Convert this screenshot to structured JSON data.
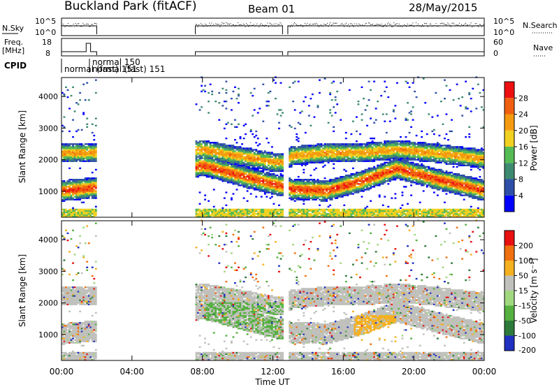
{
  "header": {
    "site": "Buckland Park (fitACF)",
    "beam": "Beam 01",
    "date": "28/May/2015"
  },
  "aux": {
    "nsky_label": "N.Sky",
    "nsearch_label": "N.Search",
    "nsky_ticks": [
      "10^5",
      "10^0"
    ],
    "freq_label_top": "Freq.",
    "freq_label_unit": "[MHz]",
    "freq_ticks": [
      "18",
      "8"
    ],
    "nave_label": "Nave",
    "nave_ticks": [
      "60",
      "0"
    ],
    "cpid_label": "CPID",
    "cpid_entries": [
      "normal 150",
      "normal (fast) 151",
      "normal (fast) 151"
    ]
  },
  "chart_data": [
    {
      "type": "heatmap",
      "panel": "power",
      "ylabel": "Slant Range [km]",
      "yticks": [
        "1000",
        "2000",
        "3000",
        "4000"
      ],
      "ylim": [
        180,
        4600
      ],
      "colorbar_label": "Power [dB]",
      "colorbar_ticks": [
        "4",
        "8",
        "12",
        "16",
        "20",
        "24",
        "28"
      ],
      "colors": [
        "#0000ff",
        "#2e4fa8",
        "#3e8a70",
        "#55bb55",
        "#f0d020",
        "#f59a10",
        "#f06010",
        "#ee1010"
      ],
      "x_hours": [
        0,
        2,
        8,
        10,
        12,
        12.6,
        13,
        15,
        17,
        19,
        21,
        24
      ],
      "main_band_center_km": [
        1000,
        1100,
        1800,
        1500,
        1200,
        1150,
        1050,
        1000,
        1300,
        1700,
        1400,
        1000
      ],
      "upper_band_center_km": [
        2200,
        2200,
        2300,
        2100,
        1900,
        1900,
        2100,
        2200,
        2200,
        2300,
        2200,
        2000
      ]
    },
    {
      "type": "heatmap",
      "panel": "velocity",
      "ylabel": "Slant Range [km]",
      "yticks": [
        "1000",
        "2000",
        "3000",
        "4000"
      ],
      "ylim": [
        180,
        4600
      ],
      "colorbar_label": "Velocity [m s⁻¹]",
      "colorbar_ticks": [
        "200",
        "100",
        "50",
        "15",
        "-15",
        "-50",
        "-100",
        "-200"
      ],
      "colors": [
        "#2030c0",
        "#2e7a3a",
        "#55b040",
        "#a0d880",
        "#c0c0bc",
        "#f5b020",
        "#f07010",
        "#e81010"
      ]
    }
  ],
  "xaxis": {
    "label": "Time UT",
    "ticks": [
      "00:00",
      "04:00",
      "08:00",
      "12:00",
      "16:00",
      "20:00",
      "00:00"
    ],
    "tick_hours": [
      0,
      4,
      8,
      12,
      16,
      20,
      24
    ],
    "range_hours": [
      0,
      24
    ]
  },
  "data_gaps_hours": [
    [
      2,
      7.6
    ],
    [
      12.55,
      12.85
    ]
  ],
  "cpid_switch_hours": [
    1.4,
    1.65
  ]
}
